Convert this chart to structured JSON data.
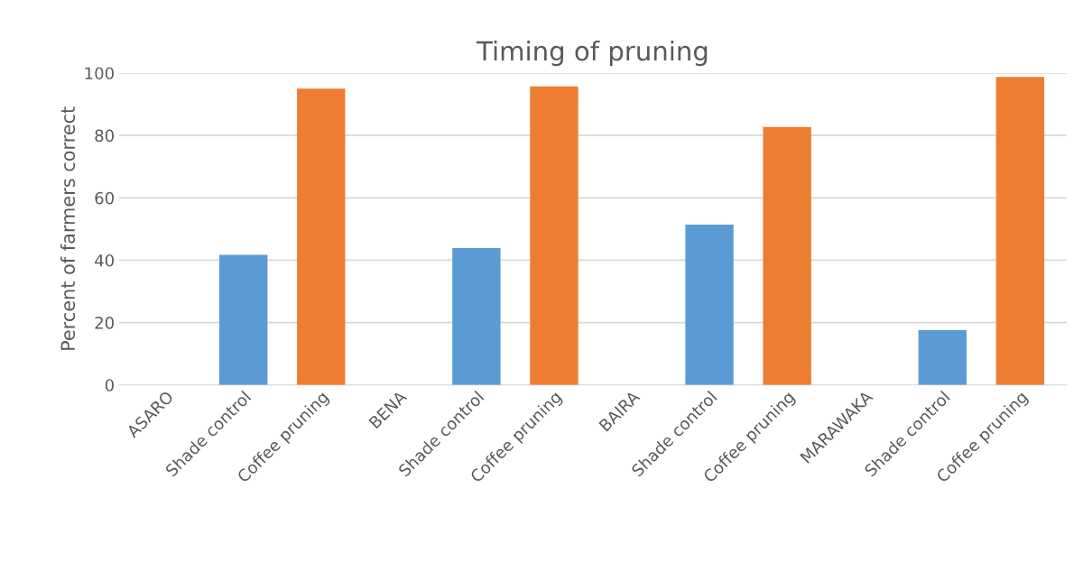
{
  "chart_data": {
    "type": "bar",
    "title": "Timing of pruning",
    "ylabel": "Percent of farmers correct",
    "categories": [
      "ASARO",
      "Shade control",
      "Coffee pruning",
      "BENA",
      "Shade control",
      "Coffee pruning",
      "BAIRA",
      "Shade control",
      "Coffee pruning",
      "MARAWAKA",
      "Shade control",
      "Coffee pruning"
    ],
    "values": [
      null,
      41.7,
      95.0,
      null,
      43.9,
      95.7,
      null,
      51.4,
      82.7,
      null,
      17.6,
      98.8
    ],
    "colors": [
      "#5b9bd5",
      "#5b9bd5",
      "#ed7d31",
      "#5b9bd5",
      "#5b9bd5",
      "#ed7d31",
      "#5b9bd5",
      "#5b9bd5",
      "#ed7d31",
      "#5b9bd5",
      "#5b9bd5",
      "#ed7d31"
    ],
    "ylim": [
      0,
      100
    ],
    "yticks": [
      0,
      20,
      40,
      60,
      80,
      100
    ],
    "grid": "y"
  }
}
